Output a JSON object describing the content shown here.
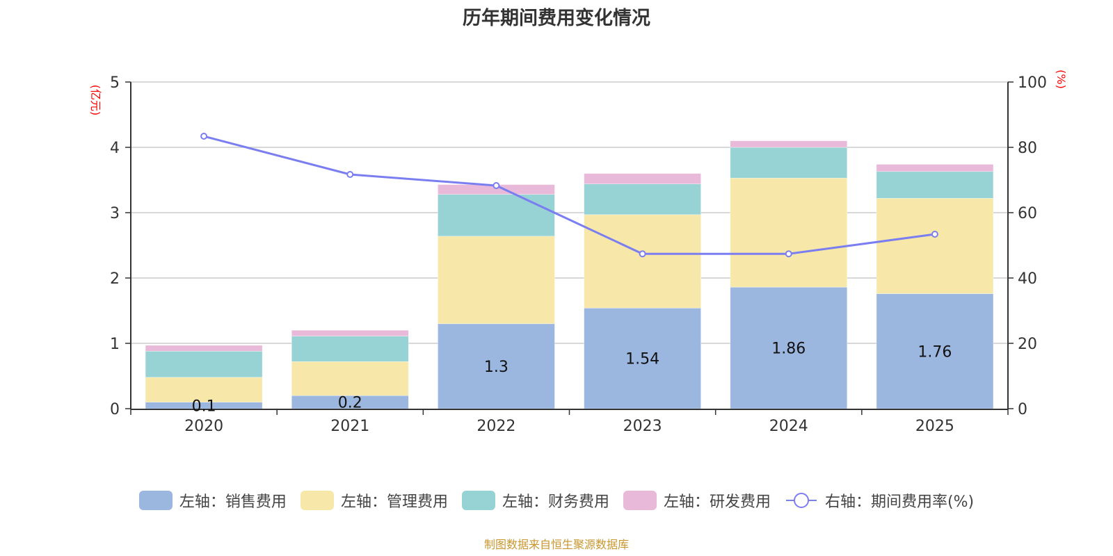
{
  "chart_data": {
    "type": "bar",
    "title": "历年期间费用变化情况",
    "categories": [
      "2020",
      "2021",
      "2022",
      "2023",
      "2024",
      "2025"
    ],
    "series": [
      {
        "name": "左轴：销售费用",
        "kind": "bar",
        "axis": "left",
        "color": "#9bb7e0",
        "values": [
          0.1,
          0.2,
          1.3,
          1.54,
          1.86,
          1.76
        ],
        "labels": [
          "0.1",
          "0.2",
          "1.3",
          "1.54",
          "1.86",
          "1.76"
        ]
      },
      {
        "name": "左轴：管理费用",
        "kind": "bar",
        "axis": "left",
        "color": "#f7e7a9",
        "values": [
          0.38,
          0.52,
          1.34,
          1.43,
          1.67,
          1.46
        ]
      },
      {
        "name": "左轴：财务费用",
        "kind": "bar",
        "axis": "left",
        "color": "#97d3d4",
        "values": [
          0.4,
          0.39,
          0.64,
          0.47,
          0.47,
          0.41
        ]
      },
      {
        "name": "左轴：研发费用",
        "kind": "bar",
        "axis": "left",
        "color": "#e8b9d8",
        "values": [
          0.09,
          0.09,
          0.15,
          0.16,
          0.1,
          0.11
        ]
      },
      {
        "name": "右轴：期间费用率(%)",
        "kind": "line",
        "axis": "right",
        "color": "#7b7ef0",
        "values": [
          83.4,
          71.7,
          68.3,
          47.4,
          47.4,
          53.4
        ]
      }
    ],
    "left_axis": {
      "label": "(亿元)",
      "ylim": [
        0,
        5
      ],
      "ticks": [
        "0",
        "1",
        "2",
        "3",
        "4",
        "5"
      ]
    },
    "right_axis": {
      "label": "(%)",
      "ylim": [
        0,
        100
      ],
      "ticks": [
        "0",
        "20",
        "40",
        "60",
        "80",
        "100"
      ]
    },
    "axis_label_color": "#ff0000",
    "grid": true,
    "legend_position": "bottom",
    "stacked": true
  },
  "footer": {
    "text": "制图数据来自恒生聚源数据库",
    "color": "#c8962e"
  }
}
